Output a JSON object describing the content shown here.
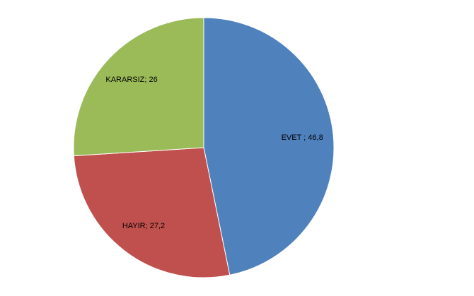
{
  "chart_data": {
    "type": "pie",
    "values": [
      46.8,
      27.2,
      26
    ],
    "value_labels": [
      "EVET ; 46,8",
      "HAYIR; 27,2",
      "KARARSIZ; 26"
    ],
    "colors": [
      "#4f81bd",
      "#c0504d",
      "#9bbb59"
    ]
  }
}
